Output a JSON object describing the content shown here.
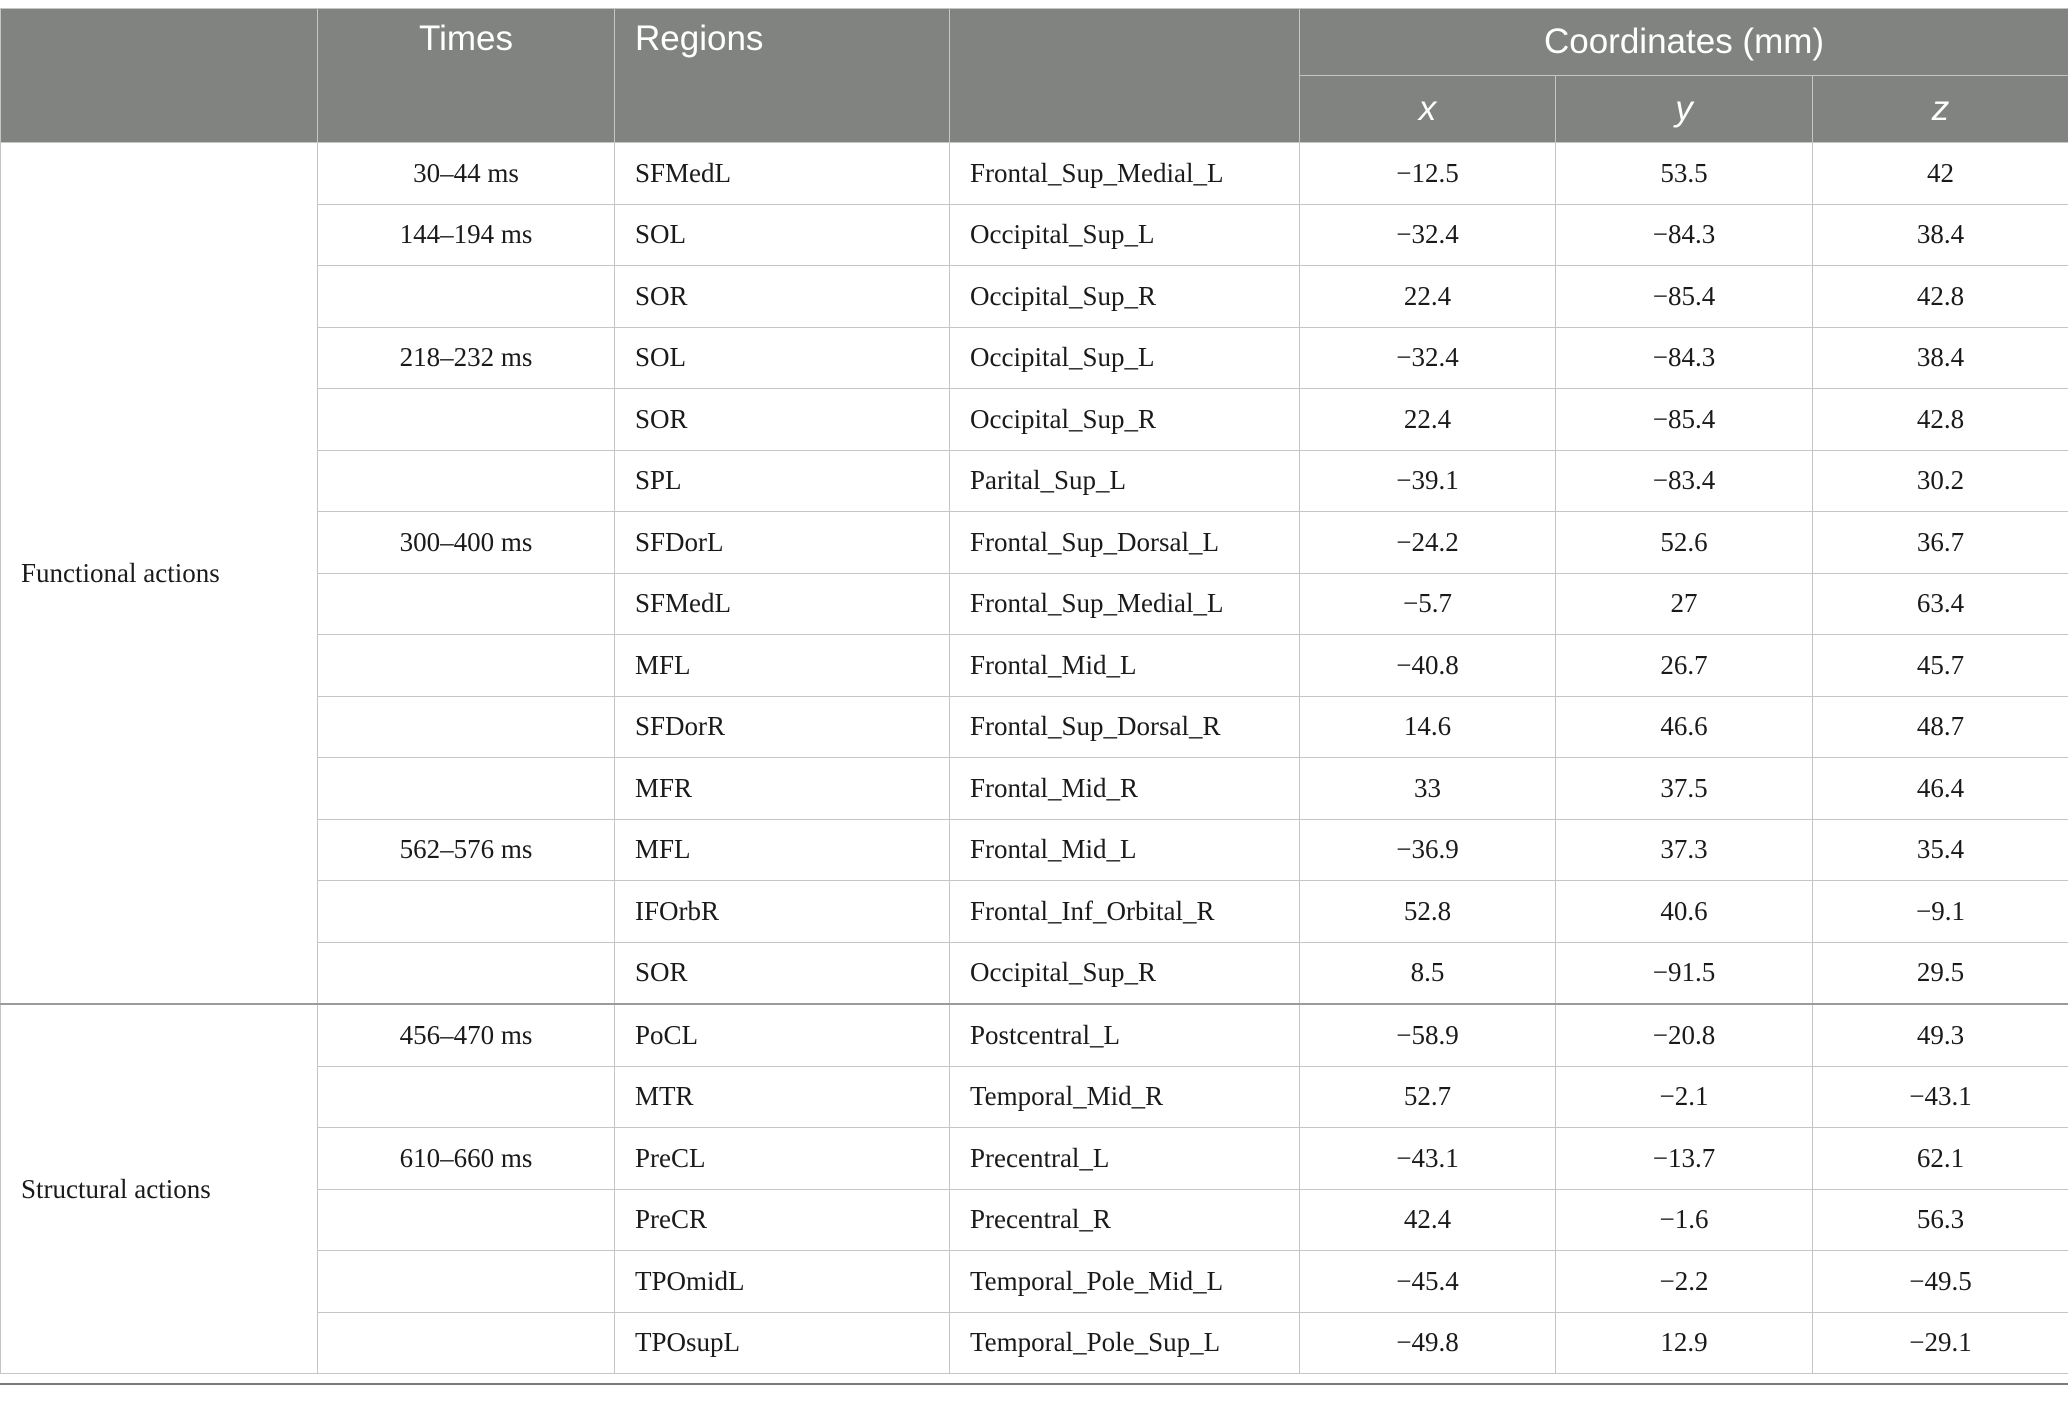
{
  "header": {
    "col_group": "",
    "times": "Times",
    "regions": "Regions",
    "aal": "",
    "coordinates": "Coordinates (mm)",
    "x": "x",
    "y": "y",
    "z": "z"
  },
  "groups": [
    {
      "label": "Functional actions",
      "rows": [
        {
          "time": "30–44 ms",
          "region": "SFMedL",
          "aal": "Frontal_Sup_Medial_L",
          "x": "−12.5",
          "y": "53.5",
          "z": "42"
        },
        {
          "time": "144–194 ms",
          "region": "SOL",
          "aal": "Occipital_Sup_L",
          "x": "−32.4",
          "y": "−84.3",
          "z": "38.4"
        },
        {
          "time": "",
          "region": "SOR",
          "aal": "Occipital_Sup_R",
          "x": "22.4",
          "y": "−85.4",
          "z": "42.8"
        },
        {
          "time": "218–232 ms",
          "region": "SOL",
          "aal": "Occipital_Sup_L",
          "x": "−32.4",
          "y": "−84.3",
          "z": "38.4"
        },
        {
          "time": "",
          "region": "SOR",
          "aal": "Occipital_Sup_R",
          "x": "22.4",
          "y": "−85.4",
          "z": "42.8"
        },
        {
          "time": "",
          "region": "SPL",
          "aal": "Parital_Sup_L",
          "x": "−39.1",
          "y": "−83.4",
          "z": "30.2"
        },
        {
          "time": "300–400 ms",
          "region": "SFDorL",
          "aal": "Frontal_Sup_Dorsal_L",
          "x": "−24.2",
          "y": "52.6",
          "z": "36.7"
        },
        {
          "time": "",
          "region": "SFMedL",
          "aal": "Frontal_Sup_Medial_L",
          "x": "−5.7",
          "y": "27",
          "z": "63.4"
        },
        {
          "time": "",
          "region": "MFL",
          "aal": "Frontal_Mid_L",
          "x": "−40.8",
          "y": "26.7",
          "z": "45.7"
        },
        {
          "time": "",
          "region": "SFDorR",
          "aal": "Frontal_Sup_Dorsal_R",
          "x": "14.6",
          "y": "46.6",
          "z": "48.7"
        },
        {
          "time": "",
          "region": "MFR",
          "aal": "Frontal_Mid_R",
          "x": "33",
          "y": "37.5",
          "z": "46.4"
        },
        {
          "time": "562–576 ms",
          "region": "MFL",
          "aal": "Frontal_Mid_L",
          "x": "−36.9",
          "y": "37.3",
          "z": "35.4"
        },
        {
          "time": "",
          "region": "IFOrbR",
          "aal": "Frontal_Inf_Orbital_R",
          "x": "52.8",
          "y": "40.6",
          "z": "−9.1"
        },
        {
          "time": "",
          "region": "SOR",
          "aal": "Occipital_Sup_R",
          "x": "8.5",
          "y": "−91.5",
          "z": "29.5"
        }
      ]
    },
    {
      "label": "Structural actions",
      "rows": [
        {
          "time": "456–470 ms",
          "region": "PoCL",
          "aal": "Postcentral_L",
          "x": "−58.9",
          "y": "−20.8",
          "z": "49.3"
        },
        {
          "time": "",
          "region": "MTR",
          "aal": "Temporal_Mid_R",
          "x": "52.7",
          "y": "−2.1",
          "z": "−43.1"
        },
        {
          "time": "610–660 ms",
          "region": "PreCL",
          "aal": "Precentral_L",
          "x": "−43.1",
          "y": "−13.7",
          "z": "62.1"
        },
        {
          "time": "",
          "region": "PreCR",
          "aal": "Precentral_R",
          "x": "42.4",
          "y": "−1.6",
          "z": "56.3"
        },
        {
          "time": "",
          "region": "TPOmidL",
          "aal": "Temporal_Pole_Mid_L",
          "x": "−45.4",
          "y": "−2.2",
          "z": "−49.5"
        },
        {
          "time": "",
          "region": "TPOsupL",
          "aal": "Temporal_Pole_Sup_L",
          "x": "−49.8",
          "y": "12.9",
          "z": "−29.1"
        }
      ]
    }
  ]
}
